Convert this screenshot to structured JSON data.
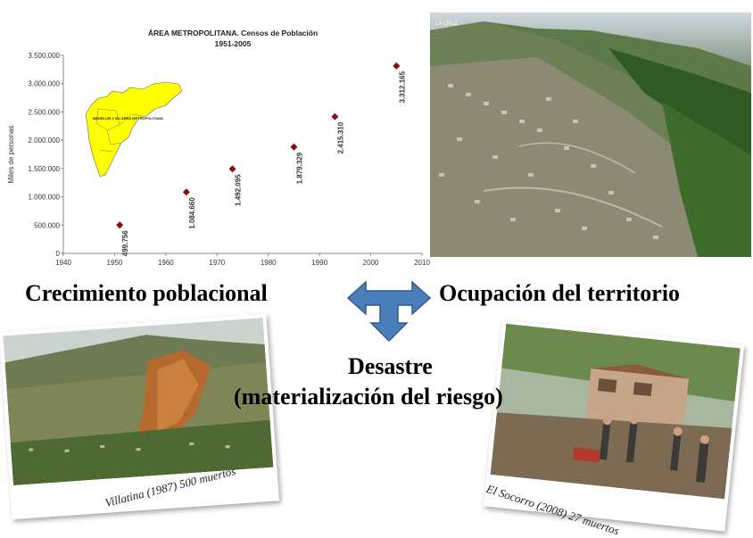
{
  "chart_data": {
    "type": "scatter",
    "title": "ÁREA METROPOLITANA. Censos de Población",
    "subtitle": "1951-2005",
    "ylabel": "Miles de personas",
    "xlabel": "",
    "xlim": [
      1940,
      2010
    ],
    "ylim": [
      0,
      3500000
    ],
    "x_ticks": [
      1940,
      1950,
      1960,
      1970,
      1980,
      1990,
      2000,
      2010
    ],
    "y_ticks": [
      "0",
      "500.000",
      "1.000.000",
      "1.500.000",
      "2.000.000",
      "2.500.000",
      "3.000.000",
      "3.500.000"
    ],
    "y_tick_values": [
      0,
      500000,
      1000000,
      1500000,
      2000000,
      2500000,
      3000000,
      3500000
    ],
    "grid": false,
    "marker_color": "#8b0a0a",
    "points": [
      {
        "x": 1951,
        "y": 499756,
        "label": "499.756"
      },
      {
        "x": 1964,
        "y": 1084660,
        "label": "1.084.660"
      },
      {
        "x": 1973,
        "y": 1492095,
        "label": "1.492.095"
      },
      {
        "x": 1985,
        "y": 1879329,
        "label": "1.879.329"
      },
      {
        "x": 1993,
        "y": 2415310,
        "label": "2.415.310"
      },
      {
        "x": 2005,
        "y": 3312165,
        "label": "3.312.165"
      }
    ]
  },
  "inset": {
    "label": "MEDELLÍN Y SU ÁREA METROPOLITANA",
    "map_color": "#ffff00"
  },
  "headlines": {
    "growth": "Crecimiento poblacional",
    "territory": "Ocupación del territorio",
    "disaster_line1": "Desastre",
    "disaster_line2": "(materialización del riesgo)"
  },
  "arrow": {
    "color": "#4a7ebb",
    "stroke": "#2f5a8e"
  },
  "captions": {
    "villatina": "Villatina (1987) 500 muertos",
    "socorro": "El Socorro (2008) 27 muertos"
  },
  "photo_labels": {
    "aerial_corner": "LA CRUZ"
  }
}
